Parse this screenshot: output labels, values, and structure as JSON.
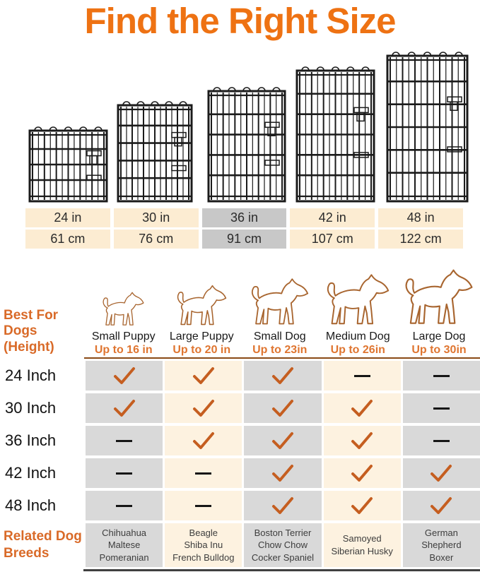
{
  "title": "Find the Right Size",
  "colors": {
    "title_orange": "#ee7213",
    "heading_orange": "#d96a28",
    "up_to_orange": "#df7530",
    "check_orange": "#c55e20",
    "cream_cell": "#fcecd2",
    "cream_cell_light": "#fdf2e0",
    "gray_highlight": "#c8c8c8",
    "gray_cell": "#d9d9d9"
  },
  "crate_sizes": [
    "24 in",
    "30 in",
    "36 in",
    "42 in",
    "48 in"
  ],
  "size_table": {
    "columns": [
      {
        "inches": "24 in",
        "cm": "61 cm",
        "highlighted": false
      },
      {
        "inches": "30 in",
        "cm": "76 cm",
        "highlighted": false
      },
      {
        "inches": "36 in",
        "cm": "91 cm",
        "highlighted": true
      },
      {
        "inches": "42 in",
        "cm": "107 cm",
        "highlighted": false
      },
      {
        "inches": "48 in",
        "cm": "122 cm",
        "highlighted": false
      }
    ]
  },
  "best_for": {
    "heading_line1": "Best For Dogs",
    "heading_line2": "(Height)",
    "dogs": [
      {
        "type": "Small Puppy",
        "max_height": "Up to 16 in"
      },
      {
        "type": "Large Puppy",
        "max_height": "Up to 20 in"
      },
      {
        "type": "Small Dog",
        "max_height": "Up to 23in"
      },
      {
        "type": "Medium Dog",
        "max_height": "Up to 26in"
      },
      {
        "type": "Large Dog",
        "max_height": "Up to 30in"
      }
    ]
  },
  "compatibility": {
    "row_labels": [
      "24 Inch",
      "30 Inch",
      "36 Inch",
      "42 Inch",
      "48 Inch"
    ],
    "values": [
      [
        1,
        1,
        1,
        0,
        0
      ],
      [
        1,
        1,
        1,
        1,
        0
      ],
      [
        0,
        1,
        1,
        1,
        0
      ],
      [
        0,
        0,
        1,
        1,
        1
      ],
      [
        0,
        0,
        1,
        1,
        1
      ]
    ]
  },
  "related_breeds": {
    "heading_line1": "Related Dog",
    "heading_line2": "Breeds",
    "columns": [
      [
        "Chihuahua",
        "Maltese",
        "Pomeranian"
      ],
      [
        "Beagle",
        "Shiba Inu",
        "French Bulldog"
      ],
      [
        "Boston Terrier",
        "Chow Chow",
        "Cocker Spaniel"
      ],
      [
        "Samoyed",
        "Siberian Husky"
      ],
      [
        "German",
        "Shepherd",
        "Boxer"
      ]
    ]
  }
}
